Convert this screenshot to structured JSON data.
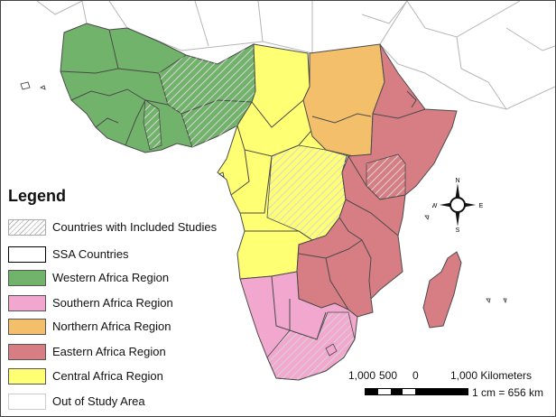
{
  "legend": {
    "title": "Legend",
    "items": [
      {
        "label": "Countries with Included Studies",
        "fill": "#ffffff",
        "pattern": "hatch",
        "border": "#aaaaaa"
      },
      {
        "label": "SSA Countries",
        "fill": "#ffffff",
        "pattern": "none",
        "border": "#000000"
      },
      {
        "label": "Western Africa Region",
        "fill": "#72b36b",
        "pattern": "none",
        "border": "#555555"
      },
      {
        "label": "Southern Africa Region",
        "fill": "#f1a7ce",
        "pattern": "none",
        "border": "#555555"
      },
      {
        "label": "Northern Africa Region",
        "fill": "#f3bf6a",
        "pattern": "none",
        "border": "#555555"
      },
      {
        "label": "Eastern Africa Region",
        "fill": "#d77e84",
        "pattern": "none",
        "border": "#555555"
      },
      {
        "label": "Central Africa Region",
        "fill": "#ffff73",
        "pattern": "none",
        "border": "#555555"
      },
      {
        "label": "Out of Study Area",
        "fill": "#ffffff",
        "pattern": "none",
        "border": "#cccccc"
      }
    ]
  },
  "scale": {
    "tick_1000_left": "1,000",
    "tick_500": "500",
    "tick_0": "0",
    "tick_1000_right": "1,000 Kilometers",
    "ratio": "1 cm = 656 km"
  },
  "compass": {
    "n": "N",
    "s": "S",
    "e": "E",
    "w": "W"
  },
  "colors": {
    "western": "#72b36b",
    "central": "#ffff73",
    "northern": "#f3bf6a",
    "eastern": "#d77e84",
    "southern": "#f1a7ce",
    "border": "#4a4a4a",
    "out_of_area_border": "#b5b5b5"
  }
}
